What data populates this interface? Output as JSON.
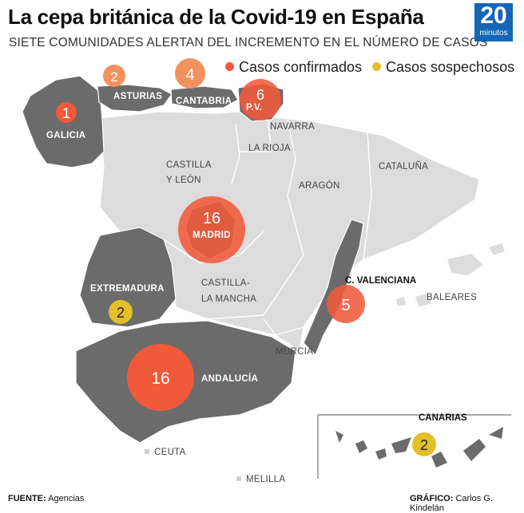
{
  "header": {
    "title": "La cepa británica de la Covid-19 en España",
    "subtitle": "SIETE COMUNIDADES ALERTAN DEL INCREMENTO EN EL NÚMERO DE CASOS",
    "logo_number": "20",
    "logo_word": "minutos"
  },
  "legend": {
    "confirmed_label": "Casos confirmados",
    "suspected_label": "Casos sospechosos",
    "confirmed_color": "#f05a3a",
    "suspected_color": "#e2c02a"
  },
  "regions": {
    "galicia": "GALICIA",
    "asturias": "ASTURIAS",
    "cantabria": "CANTABRIA",
    "pv": "P.V.",
    "navarra": "NAVARRA",
    "la_rioja": "LA RIOJA",
    "castilla_leon_1": "CASTILLA",
    "castilla_leon_2": "Y LEÓN",
    "aragon": "ARAGÓN",
    "cataluna": "CATALUÑA",
    "madrid": "MADRID",
    "extremadura": "EXTREMADURA",
    "castilla_mancha_1": "CASTILLA-",
    "castilla_mancha_2": "LA MANCHA",
    "valenciana": "C. VALENCIANA",
    "baleares": "BALEARES",
    "murcia": "MURCIA",
    "andalucia": "ANDALUCÍA",
    "canarias": "CANARIAS",
    "ceuta": "CEUTA",
    "melilla": "MELILLA"
  },
  "cases": {
    "galicia": "1",
    "asturias": "2",
    "cantabria": "4",
    "pv": "6",
    "madrid": "16",
    "extremadura": "2",
    "valenciana": "5",
    "andalucia": "16",
    "canarias": "2"
  },
  "footer": {
    "source_label": "FUENTE:",
    "source_value": "Agencias",
    "graphic_label": "GRÁFICO:",
    "graphic_value": "Carlos G. Kindelán"
  }
}
